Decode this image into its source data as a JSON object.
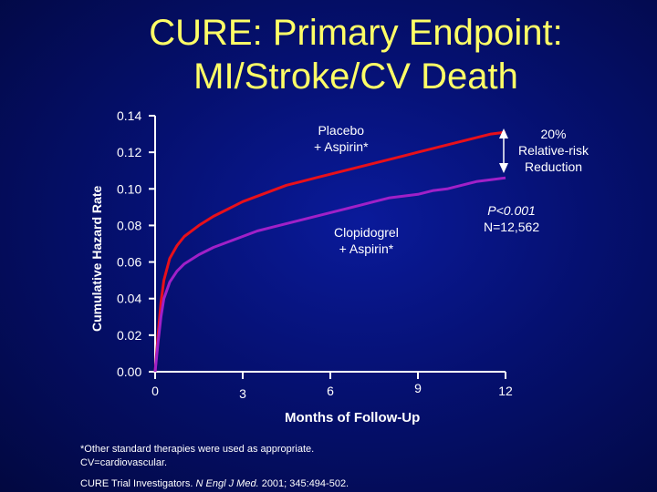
{
  "title_line1": "CURE: Primary Endpoint:",
  "title_line2": "MI/Stroke/CV Death",
  "chart_data": {
    "type": "line",
    "title": "CURE: Primary Endpoint: MI/Stroke/CV Death",
    "xlabel": "Months of Follow-Up",
    "ylabel": "Cumulative Hazard Rate",
    "xlim": [
      0,
      12
    ],
    "ylim": [
      0,
      0.14
    ],
    "x_ticks": [
      "0",
      "3",
      "6",
      "9",
      "12"
    ],
    "y_ticks": [
      "0.00",
      "0.02",
      "0.04",
      "0.06",
      "0.08",
      "0.10",
      "0.12",
      "0.14"
    ],
    "grid": false,
    "series": [
      {
        "name": "Placebo + Aspirin*",
        "color": "#e8101a",
        "x": [
          0,
          0.1,
          0.2,
          0.3,
          0.5,
          0.75,
          1,
          1.5,
          2,
          2.5,
          3,
          3.5,
          4,
          4.5,
          5,
          5.5,
          6,
          6.5,
          7,
          7.5,
          8,
          8.5,
          9,
          9.5,
          10,
          10.5,
          11,
          11.5,
          12
        ],
        "y": [
          0,
          0.02,
          0.038,
          0.05,
          0.062,
          0.069,
          0.074,
          0.08,
          0.085,
          0.089,
          0.093,
          0.096,
          0.099,
          0.102,
          0.104,
          0.106,
          0.108,
          0.11,
          0.112,
          0.114,
          0.116,
          0.118,
          0.12,
          0.122,
          0.124,
          0.126,
          0.128,
          0.13,
          0.131
        ]
      },
      {
        "name": "Clopidogrel + Aspirin*",
        "color": "#a020c8",
        "x": [
          0,
          0.1,
          0.2,
          0.3,
          0.5,
          0.75,
          1,
          1.5,
          2,
          2.5,
          3,
          3.5,
          4,
          4.5,
          5,
          5.5,
          6,
          6.5,
          7,
          7.5,
          8,
          8.5,
          9,
          9.5,
          10,
          10.5,
          11,
          11.5,
          12
        ],
        "y": [
          0,
          0.016,
          0.03,
          0.04,
          0.049,
          0.055,
          0.059,
          0.064,
          0.068,
          0.071,
          0.074,
          0.077,
          0.079,
          0.081,
          0.083,
          0.085,
          0.087,
          0.089,
          0.091,
          0.093,
          0.095,
          0.096,
          0.097,
          0.099,
          0.1,
          0.102,
          0.104,
          0.105,
          0.106
        ]
      }
    ],
    "annotations": {
      "placebo_label": [
        "Placebo",
        "+ Aspirin*"
      ],
      "clopidogrel_label": [
        "Clopidogrel",
        "+ Aspirin*"
      ],
      "rrr": [
        "20%",
        "Relative-risk",
        "Reduction"
      ],
      "p_value": "P<0.001",
      "n": "N=12,562"
    }
  },
  "footer": {
    "line1": "*Other standard therapies were used as appropriate.",
    "line2": "CV=cardiovascular.",
    "citation_pre": "CURE Trial Investigators. ",
    "citation_journal": "N Engl J Med.",
    "citation_post": " 2001; 345:494-502."
  }
}
